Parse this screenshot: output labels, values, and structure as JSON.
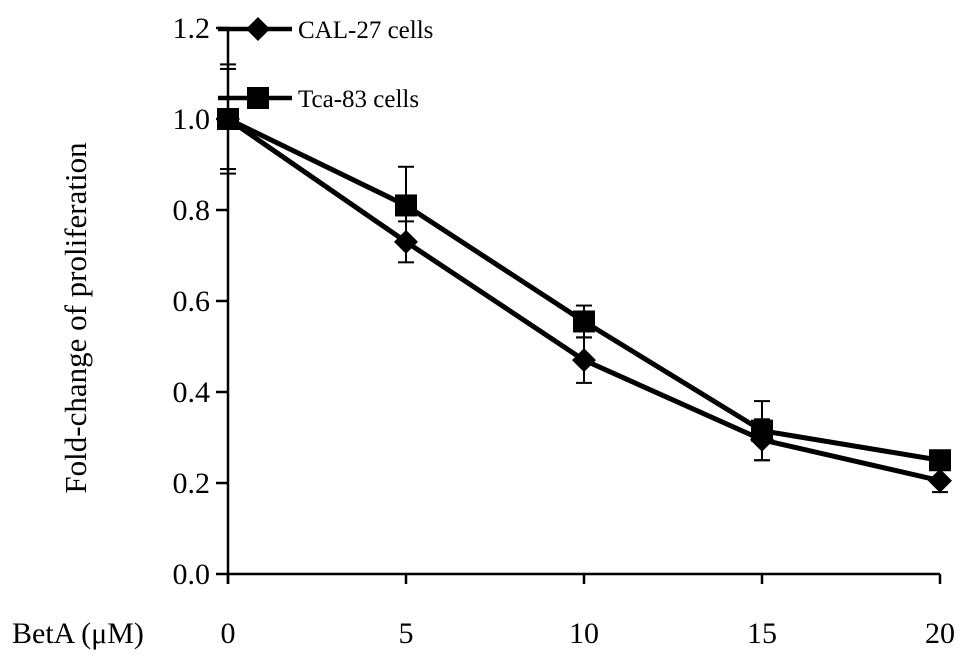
{
  "chart_data": {
    "type": "line",
    "x": [
      0,
      5,
      10,
      15,
      20
    ],
    "x_tick_labels": [
      "0",
      "5",
      "10",
      "15",
      "20"
    ],
    "xlabel": "BetA (μM)",
    "ylabel": "Fold-change of proliferation",
    "ylim": [
      0.0,
      1.2
    ],
    "y_ticks": [
      0.0,
      0.2,
      0.4,
      0.6,
      0.8,
      1.0,
      1.2
    ],
    "y_tick_labels": [
      "0.0",
      "0.2",
      "0.4",
      "0.6",
      "0.8",
      "1.0",
      "1.2"
    ],
    "grid": false,
    "legend_position": "top-left",
    "series": [
      {
        "name": "CAL-27 cells",
        "marker": "diamond",
        "color": "#000000",
        "values": [
          1.0,
          0.73,
          0.47,
          0.295,
          0.205
        ],
        "errors": [
          0.12,
          0.045,
          0.05,
          0.045,
          0.025
        ]
      },
      {
        "name": "Tca-83 cells",
        "marker": "square",
        "color": "#000000",
        "values": [
          1.0,
          0.81,
          0.555,
          0.315,
          0.25
        ],
        "errors": [
          0.11,
          0.085,
          0.035,
          0.065,
          0.02
        ]
      }
    ]
  }
}
